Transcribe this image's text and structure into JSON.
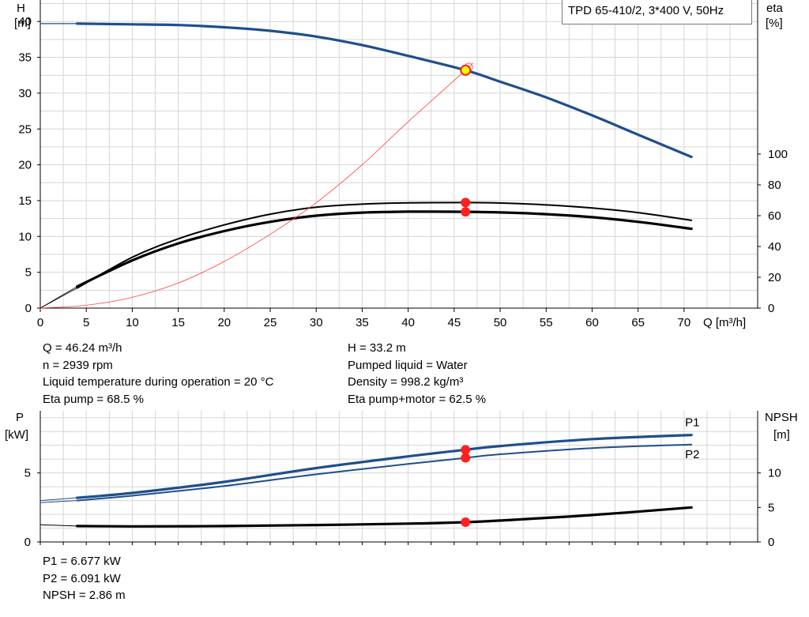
{
  "title": "TPD 65-410/2, 3*400 V, 50Hz",
  "info_top": {
    "left": [
      "Q = 46.24 m³/h",
      "n = 2939 rpm",
      "Liquid temperature during operation = 20 °C",
      "Eta pump = 68.5 %"
    ],
    "right": [
      "H = 33.2 m",
      "Pumped liquid = Water",
      "Density = 998.2 kg/m³",
      "Eta pump+motor = 62.5 %"
    ]
  },
  "info_bottom": [
    "P1 = 6.677 kW",
    "P2 = 6.091 kW",
    "NPSH = 2.86 m"
  ],
  "colors": {
    "blue": "#1f4e8c",
    "black": "#000000",
    "red": "#ff2020",
    "yellow": "#ffff00",
    "grid": "#d6d6d6",
    "system": "#ff4040"
  },
  "chart_data": [
    {
      "type": "line",
      "title": "TPD 65-410/2, 3*400 V, 50Hz",
      "xlabel": "Q [m³/h]",
      "ylabel": "H [m]",
      "ylabel_right": "eta [%]",
      "xlim": [
        0,
        78
      ],
      "ylim": [
        0,
        43
      ],
      "ylim_right": [
        0,
        200
      ],
      "xticks": [
        0,
        5,
        10,
        15,
        20,
        25,
        30,
        35,
        40,
        45,
        50,
        55,
        60,
        65,
        70
      ],
      "yticks": [
        0,
        5,
        10,
        15,
        20,
        25,
        30,
        35,
        40
      ],
      "yticks_right": [
        0,
        20,
        40,
        60,
        80,
        100
      ],
      "grid": true,
      "series": [
        {
          "name": "H",
          "axis": "left",
          "color": "#1f4e8c",
          "x": [
            4,
            10,
            15,
            20,
            25,
            30,
            35,
            40,
            46.24,
            50,
            55,
            60,
            65,
            70.8
          ],
          "y": [
            39.7,
            39.6,
            39.5,
            39.2,
            38.7,
            37.9,
            36.7,
            35.2,
            33.2,
            31.6,
            29.4,
            26.9,
            24.2,
            21.1
          ]
        },
        {
          "name": "H extension",
          "axis": "left",
          "color": "#1f4e8c",
          "x": [
            0,
            4
          ],
          "y": [
            39.7,
            39.7
          ]
        },
        {
          "name": "Eta pump",
          "axis": "right",
          "color": "#000000",
          "x": [
            0,
            4,
            10,
            15,
            20,
            25,
            30,
            35,
            40,
            46.24,
            50,
            55,
            60,
            65,
            70.8
          ],
          "y": [
            0,
            13,
            33,
            45,
            54,
            61,
            65.5,
            67.5,
            68.3,
            68.5,
            68.2,
            67,
            65,
            62,
            57
          ]
        },
        {
          "name": "Eta pump+motor",
          "axis": "right",
          "color": "#000000",
          "x": [
            0,
            4,
            10,
            15,
            20,
            25,
            30,
            35,
            40,
            46.24,
            50,
            55,
            60,
            65,
            70.8
          ],
          "y": [
            0,
            14,
            31,
            42,
            50,
            56,
            60,
            62,
            62.6,
            62.5,
            62.1,
            61,
            59,
            56,
            51.5
          ]
        },
        {
          "name": "System curve",
          "axis": "left",
          "color": "#ff4040",
          "x": [
            0,
            5,
            10,
            15,
            20,
            25,
            30,
            35,
            40,
            46.24,
            47
          ],
          "y": [
            0,
            0.4,
            1.5,
            3.5,
            6.5,
            10.3,
            14.7,
            20.0,
            26.0,
            33.2,
            34.2
          ]
        }
      ],
      "points": [
        {
          "series": "H",
          "x": 46.24,
          "y": 33.2
        },
        {
          "series": "Eta pump",
          "x": 46.24,
          "y": 68.5
        },
        {
          "series": "Eta pump+motor",
          "x": 46.24,
          "y": 62.5
        }
      ]
    },
    {
      "type": "line",
      "ylabel": "P [kW]",
      "ylabel_right": "NPSH [m]",
      "xlim": [
        0,
        78
      ],
      "ylim": [
        0,
        9.5
      ],
      "ylim_right": [
        0,
        19
      ],
      "yticks": [
        0,
        5
      ],
      "yticks_right": [
        0,
        5,
        10
      ],
      "grid": true,
      "series": [
        {
          "name": "P1",
          "axis": "left",
          "color": "#1f4e8c",
          "x": [
            0,
            4,
            10,
            20,
            30,
            40,
            46.24,
            50,
            60,
            70.8
          ],
          "y": [
            3.0,
            3.2,
            3.55,
            4.35,
            5.35,
            6.2,
            6.677,
            6.95,
            7.45,
            7.75
          ]
        },
        {
          "name": "P2",
          "axis": "left",
          "color": "#1f4e8c",
          "x": [
            0,
            4,
            10,
            20,
            30,
            40,
            46.24,
            50,
            60,
            70.8
          ],
          "y": [
            2.85,
            3.0,
            3.35,
            4.05,
            4.9,
            5.65,
            6.091,
            6.35,
            6.8,
            7.05
          ]
        },
        {
          "name": "NPSH",
          "axis": "right",
          "color": "#000000",
          "x": [
            0,
            4,
            10,
            20,
            30,
            40,
            46.24,
            50,
            60,
            70.8
          ],
          "y": [
            2.5,
            2.3,
            2.25,
            2.3,
            2.45,
            2.65,
            2.86,
            3.1,
            3.9,
            5.0
          ]
        }
      ],
      "labels": [
        {
          "text": "P1",
          "series": "P1"
        },
        {
          "text": "P2",
          "series": "P2"
        }
      ],
      "points": [
        {
          "series": "P1",
          "x": 46.24,
          "y": 6.677
        },
        {
          "series": "P2",
          "x": 46.24,
          "y": 6.091
        },
        {
          "series": "NPSH",
          "x": 46.24,
          "y": 2.86
        }
      ]
    }
  ]
}
